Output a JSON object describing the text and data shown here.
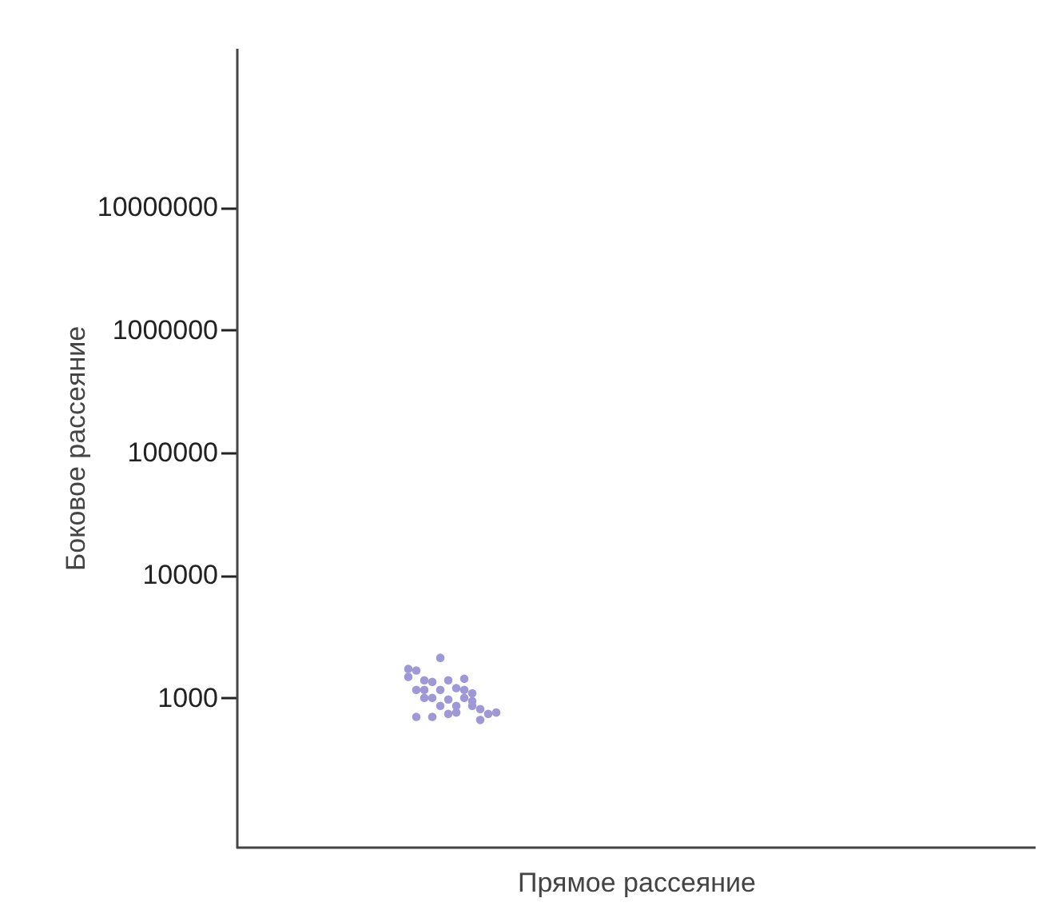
{
  "chart_data": {
    "type": "scatter",
    "xlabel": "Прямое рассеяние",
    "ylabel": "Боковое рассеяние",
    "log": "y",
    "tick_labels": "y",
    "marker": "circle",
    "ylim": [
      60,
      200000000
    ],
    "yticks": [
      1000,
      10000,
      100000,
      1000000,
      10000000
    ],
    "categories": [
      null,
      null,
      null,
      null,
      null,
      null,
      null,
      null,
      null,
      null,
      null,
      null,
      null,
      null,
      null,
      null,
      null,
      null,
      null,
      null,
      null,
      null,
      null,
      null,
      null,
      null,
      null,
      null,
      null,
      null,
      null,
      null,
      null,
      null,
      null,
      null,
      null,
      null,
      null,
      null,
      null,
      null,
      null,
      null,
      null,
      null,
      null,
      null,
      null,
      null,
      null,
      null,
      null,
      null,
      null,
      null,
      null,
      null,
      null,
      null,
      null,
      null,
      null,
      null,
      null,
      null,
      null,
      null,
      null,
      null,
      null,
      null,
      null,
      null,
      null,
      null,
      null,
      null,
      null,
      null,
      null,
      null,
      null,
      null,
      null,
      null,
      null,
      null,
      null,
      null,
      null,
      null,
      null,
      null,
      null,
      null,
      null,
      null,
      null,
      null
    ],
    "series": [
      {
        "color": "#9e98d6",
        "values": [
          null,
          null,
          null,
          null,
          null,
          null,
          null,
          null,
          null,
          null,
          null,
          null,
          null,
          null,
          null,
          null,
          null,
          null,
          null,
          null,
          null,
          1720,
          1670,
          1390,
          1350,
          2120,
          1390,
          1200,
          1430,
          1090,
          810,
          740,
          760,
          null,
          null,
          null,
          null,
          null,
          null,
          null,
          null,
          null,
          null,
          null,
          null,
          null,
          null,
          null,
          null,
          null,
          null,
          null,
          null,
          null,
          null,
          null,
          null,
          null,
          null,
          null,
          null,
          null,
          null,
          null,
          null,
          null,
          null,
          null,
          null,
          null,
          null,
          null,
          null,
          null,
          null,
          null,
          null,
          null,
          null,
          null,
          null,
          null,
          null,
          null,
          null,
          null,
          null,
          null,
          null,
          null,
          null,
          null,
          null,
          null,
          null,
          null,
          null,
          null,
          null,
          null
        ]
      },
      {
        "color": "#9e98d6",
        "values": [
          null,
          null,
          null,
          null,
          null,
          null,
          null,
          null,
          null,
          null,
          null,
          null,
          null,
          null,
          null,
          null,
          null,
          null,
          null,
          null,
          null,
          1480,
          1160,
          1160,
          1000,
          1160,
          970,
          860,
          1160,
          940,
          660,
          null,
          null,
          null,
          null,
          null,
          null,
          null,
          null,
          null,
          null,
          null,
          null,
          null,
          null,
          null,
          null,
          null,
          null,
          null,
          null,
          null,
          null,
          null,
          null,
          null,
          null,
          null,
          null,
          null,
          null,
          null,
          null,
          null,
          null,
          null,
          null,
          null,
          null,
          null,
          null,
          null,
          null,
          null,
          null,
          null,
          null,
          null,
          null,
          null,
          null,
          null,
          null,
          null,
          null,
          null,
          null,
          null,
          null,
          null,
          null,
          null,
          null,
          null,
          null,
          null,
          null,
          null,
          null,
          null
        ]
      },
      {
        "color": "#9e98d6",
        "values": [
          null,
          null,
          null,
          null,
          null,
          null,
          null,
          null,
          null,
          null,
          null,
          null,
          null,
          null,
          null,
          null,
          null,
          null,
          null,
          null,
          null,
          null,
          700,
          1000,
          700,
          860,
          740,
          760,
          1000,
          860,
          null,
          null,
          null,
          null,
          null,
          null,
          null,
          null,
          null,
          null,
          null,
          null,
          null,
          null,
          null,
          null,
          null,
          null,
          null,
          null,
          null,
          null,
          null,
          null,
          null,
          null,
          null,
          null,
          null,
          null,
          null,
          null,
          null,
          null,
          null,
          null,
          null,
          null,
          null,
          null,
          null,
          null,
          null,
          null,
          null,
          null,
          null,
          null,
          null,
          null,
          null,
          null,
          null,
          null,
          null,
          null,
          null,
          null,
          null,
          null,
          null,
          null,
          null,
          null,
          null,
          null,
          null,
          null,
          null,
          null
        ]
      }
    ]
  }
}
